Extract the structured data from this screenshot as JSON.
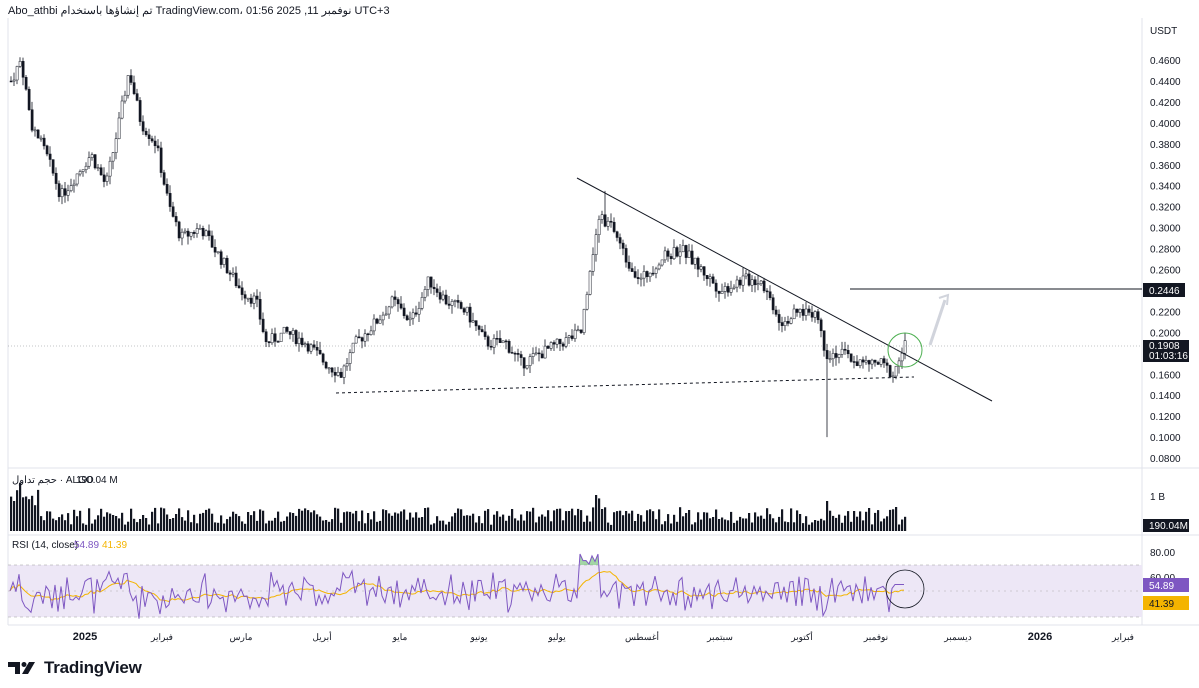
{
  "header": {
    "text": "Abo_athbi تم إنشاؤها باستخدام TradingView.com، 01:56 2025 ,11 نوفمبر UTC+3"
  },
  "footer": {
    "logo_text": "TradingView"
  },
  "price_scale": {
    "currency": "USDT",
    "ticks": [
      "0.4600",
      "0.4400",
      "0.4200",
      "0.4000",
      "0.3800",
      "0.3600",
      "0.3400",
      "0.3200",
      "0.3000",
      "0.2800",
      "0.2600",
      "0.2200",
      "0.2000",
      "0.1600",
      "0.1400",
      "0.1200",
      "0.1000",
      "0.0800"
    ],
    "target_label": "0.2446",
    "last_price_label": "0.1908",
    "countdown_label": "01:03:16"
  },
  "volume_pane": {
    "title": "حجم تداول · ALGO",
    "value": "190.04 M",
    "scale_tick": "1 B",
    "last_label": "190.04M"
  },
  "rsi_pane": {
    "title": "RSI (14, close)",
    "rsi_value": "54.89",
    "ma_value": "41.39",
    "ticks": [
      "80.00",
      "60.00"
    ],
    "rsi_label": "54.89",
    "ma_label": "41.39"
  },
  "time_axis": {
    "labels": [
      "2025",
      "فبراير",
      "مارس",
      "أبريل",
      "مايو",
      "يونيو",
      "يوليو",
      "أغسطس",
      "سبتمبر",
      "أكتوبر",
      "نوفمبر",
      "ديسمبر",
      "2026",
      "فبراير"
    ]
  },
  "colors": {
    "up": "#131722",
    "down": "#131722",
    "rsi": "#7e57c2",
    "rsi_ma": "#f4b400",
    "rsi_band": "#ede7f6",
    "highlight_circle": "#4caf50",
    "axis_label_bg": "#131722"
  },
  "chart_data": {
    "type": "candlestick",
    "symbol": "ALGO",
    "quote": "USDT",
    "ylim": [
      0.08,
      0.47
    ],
    "levels": {
      "target": 0.2446,
      "last": 0.1908
    },
    "series": [
      {
        "name": "price_approx",
        "x": [
          "2025-01",
          "2025-02",
          "2025-03",
          "2025-04",
          "2025-05",
          "2025-06",
          "2025-07",
          "2025-08",
          "2025-09",
          "2025-10",
          "2025-11"
        ],
        "values": [
          0.4,
          0.34,
          0.19,
          0.17,
          0.24,
          0.21,
          0.18,
          0.3,
          0.25,
          0.2,
          0.19
        ]
      }
    ],
    "rsi": {
      "value": 54.89,
      "ma": 41.39,
      "bands": [
        30,
        70
      ]
    },
    "volume_last": "190.04M"
  }
}
